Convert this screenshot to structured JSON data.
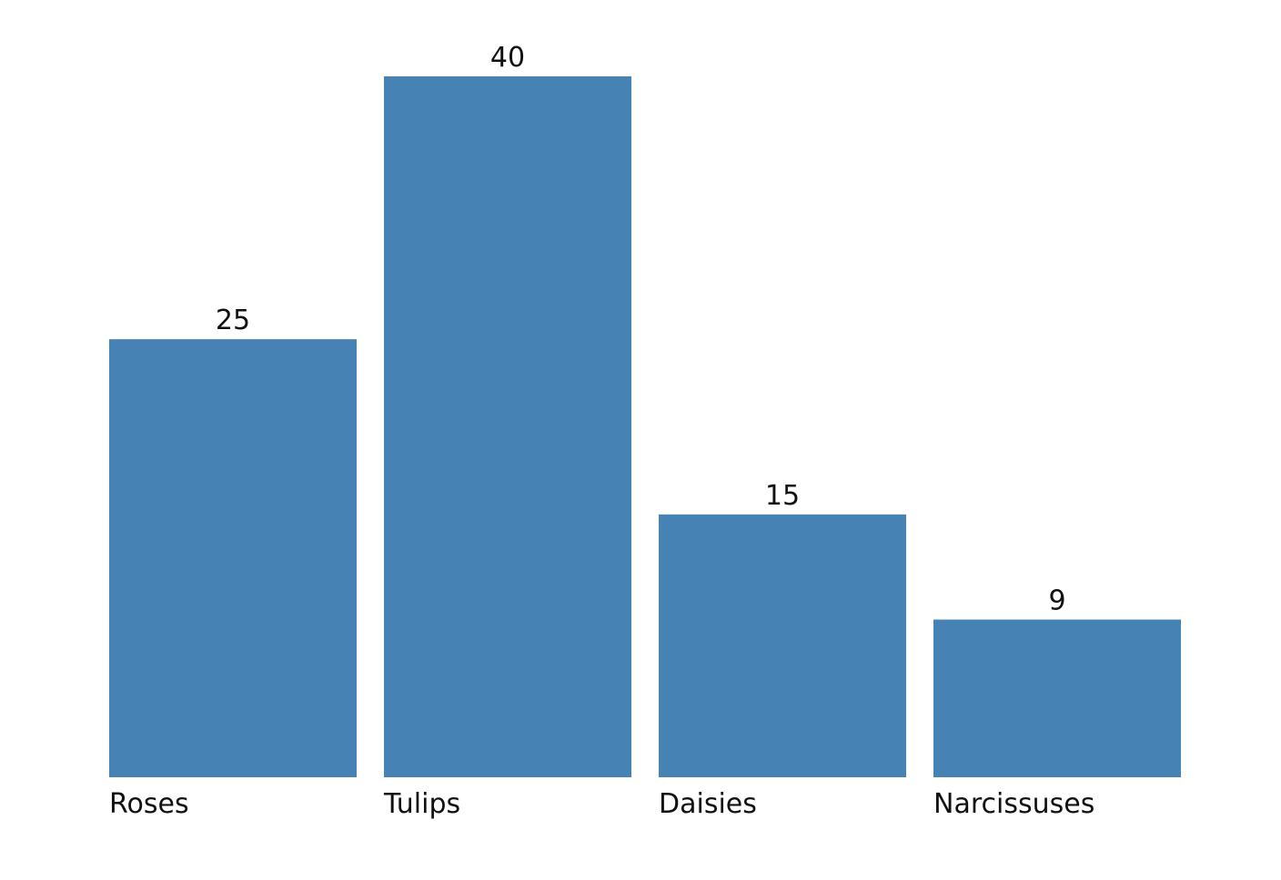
{
  "chart_data": {
    "type": "bar",
    "title": "",
    "xlabel": "",
    "ylabel": "",
    "categories": [
      "Roses",
      "Tulips",
      "Daisies",
      "Narcissuses"
    ],
    "values": [
      25,
      40,
      15,
      9
    ],
    "ylim": [
      0,
      40
    ],
    "grid": false,
    "legend": "none",
    "bar_color": "#4682b4",
    "data_labels": true
  }
}
